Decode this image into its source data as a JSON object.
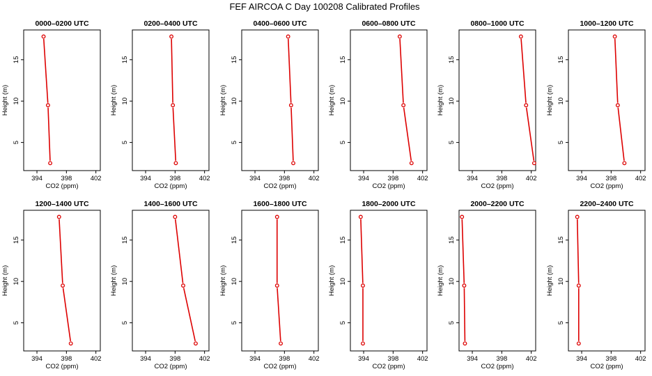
{
  "title": "FEF AIRCOA C  Day 100208  Calibrated Profiles",
  "chart_data": {
    "type": "line",
    "xlabel": "CO2 (ppm)",
    "ylabel": "Height (m)",
    "xlim": [
      392.2,
      402.6
    ],
    "ylim": [
      1.6,
      18.6
    ],
    "xticks": [
      394,
      398,
      402
    ],
    "yticks": [
      5,
      10,
      15
    ],
    "heights": [
      17.8,
      9.5,
      2.5
    ],
    "panels": [
      {
        "title": "0000–0200 UTC",
        "co2": [
          394.9,
          395.5,
          395.8
        ]
      },
      {
        "title": "0200–0400 UTC",
        "co2": [
          397.5,
          397.7,
          398.1
        ]
      },
      {
        "title": "0400–0600 UTC",
        "co2": [
          398.5,
          398.9,
          399.2
        ]
      },
      {
        "title": "0600–0800 UTC",
        "co2": [
          398.9,
          399.4,
          400.5
        ]
      },
      {
        "title": "0800–1000 UTC",
        "co2": [
          400.6,
          401.3,
          402.4
        ]
      },
      {
        "title": "1000–1200 UTC",
        "co2": [
          398.5,
          398.9,
          399.8
        ]
      },
      {
        "title": "1200–1400 UTC",
        "co2": [
          397.0,
          397.5,
          398.6
        ]
      },
      {
        "title": "1400–1600 UTC",
        "co2": [
          398.0,
          399.1,
          400.8
        ]
      },
      {
        "title": "1600–1800 UTC",
        "co2": [
          397.0,
          397.0,
          397.5
        ]
      },
      {
        "title": "1800–2000 UTC",
        "co2": [
          393.6,
          393.9,
          393.9
        ]
      },
      {
        "title": "2000–2200 UTC",
        "co2": [
          392.6,
          392.9,
          393.0
        ]
      },
      {
        "title": "2200–2400 UTC",
        "co2": [
          393.4,
          393.6,
          393.6
        ]
      }
    ]
  }
}
